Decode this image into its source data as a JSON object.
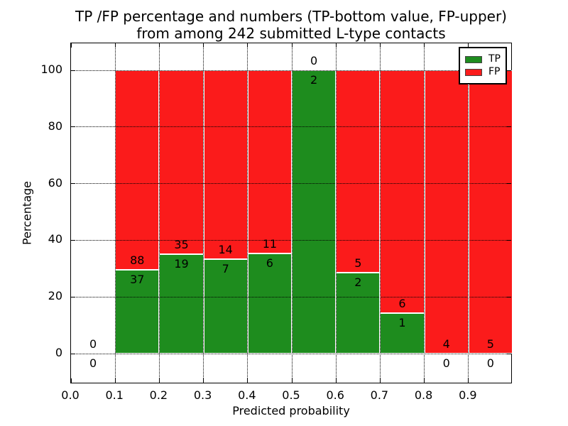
{
  "title": {
    "line1": "TP /FP percentage and numbers (TP-bottom value, FP-upper)",
    "line2": "from among 242 submitted L-type contacts"
  },
  "axes": {
    "xlabel": "Predicted probability",
    "ylabel": "Percentage",
    "x_tick_labels": [
      "0.0",
      "0.1",
      "0.2",
      "0.3",
      "0.4",
      "0.5",
      "0.6",
      "0.7",
      "0.8",
      "0.9"
    ],
    "x_tick_values": [
      0.0,
      0.1,
      0.2,
      0.3,
      0.4,
      0.5,
      0.6,
      0.7,
      0.8,
      0.9
    ],
    "y_tick_labels": [
      "0",
      "20",
      "40",
      "60",
      "80",
      "100"
    ],
    "y_tick_values": [
      0,
      20,
      40,
      60,
      80,
      100
    ]
  },
  "legend": {
    "items": [
      {
        "label": "TP",
        "color": "#1e8c1e"
      },
      {
        "label": "FP",
        "color": "#fb1b1b"
      }
    ]
  },
  "colors": {
    "tp": "#1e8c1e",
    "fp": "#fb1b1b",
    "grid": "#000000",
    "frame": "#000000"
  },
  "chart_data": {
    "type": "bar",
    "stacked": true,
    "normalized_to_percent": true,
    "title": "TP /FP percentage and numbers (TP-bottom value, FP-upper) from among 242 submitted L-type contacts",
    "xlabel": "Predicted probability",
    "ylabel": "Percentage",
    "xlim": [
      0.0,
      1.0
    ],
    "ylim": [
      -10.8,
      109.6
    ],
    "grid": true,
    "legend_position": "upper right",
    "total_contacts": 242,
    "series_names": [
      "TP",
      "FP"
    ],
    "bins": [
      {
        "x_start": 0.0,
        "x_end": 0.1,
        "tp": 0,
        "fp": 0
      },
      {
        "x_start": 0.1,
        "x_end": 0.2,
        "tp": 37,
        "fp": 88
      },
      {
        "x_start": 0.2,
        "x_end": 0.3,
        "tp": 19,
        "fp": 35
      },
      {
        "x_start": 0.3,
        "x_end": 0.4,
        "tp": 7,
        "fp": 14
      },
      {
        "x_start": 0.4,
        "x_end": 0.5,
        "tp": 6,
        "fp": 11
      },
      {
        "x_start": 0.5,
        "x_end": 0.6,
        "tp": 2,
        "fp": 0
      },
      {
        "x_start": 0.6,
        "x_end": 0.7,
        "tp": 2,
        "fp": 5
      },
      {
        "x_start": 0.7,
        "x_end": 0.8,
        "tp": 1,
        "fp": 6
      },
      {
        "x_start": 0.8,
        "x_end": 0.9,
        "tp": 0,
        "fp": 4
      },
      {
        "x_start": 0.9,
        "x_end": 1.0,
        "tp": 0,
        "fp": 5
      }
    ]
  }
}
